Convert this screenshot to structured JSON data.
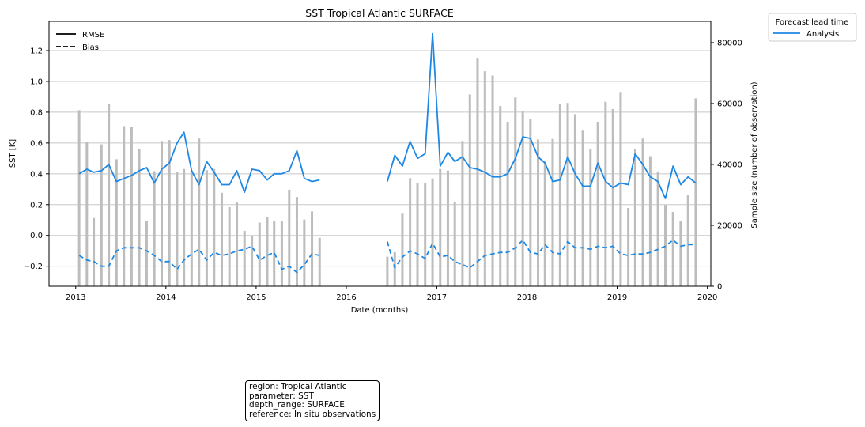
{
  "chart_data": {
    "type": "line",
    "title": "SST Tropical Atlantic SURFACE",
    "xlabel": "Date (months)",
    "ylabel": "SST [K]",
    "y2label": "Sample size (number of observation)",
    "xlim": [
      "2012-09-15",
      "2020-01-15"
    ],
    "ylim": [
      -0.33,
      1.39
    ],
    "y2lim": [
      0,
      87000
    ],
    "x_ticks": [
      "2013",
      "2014",
      "2015",
      "2016",
      "2017",
      "2018",
      "2019",
      "2020"
    ],
    "y_ticks": [
      "−0.2",
      "0.0",
      "0.2",
      "0.4",
      "0.6",
      "0.8",
      "1.0",
      "1.2"
    ],
    "y_tick_values": [
      -0.2,
      0.0,
      0.2,
      0.4,
      0.6,
      0.8,
      1.0,
      1.2
    ],
    "y2_ticks": [
      "0",
      "20000",
      "40000",
      "60000",
      "80000"
    ],
    "y2_tick_values": [
      0,
      20000,
      40000,
      60000,
      80000
    ],
    "grid": "horizontal",
    "style_legend": {
      "placement": "top-left",
      "entries": [
        {
          "label": "RMSE",
          "dash": "solid"
        },
        {
          "label": "Bias",
          "dash": "dashed"
        }
      ]
    },
    "series_legend": {
      "placement": "outside-top-right",
      "title": "Forecast lead time",
      "entries": [
        {
          "label": "Analysis",
          "color": "#1e88e5"
        }
      ]
    },
    "colors": {
      "line": "#1e88e5",
      "bars": "#bdbdbd",
      "grid": "#c8c8c8"
    },
    "rmse_segments": [
      {
        "start": "2013-01",
        "values": [
          0.4,
          0.43,
          0.41,
          0.42,
          0.46,
          0.35,
          0.37,
          0.39,
          0.42,
          0.44,
          0.34,
          0.43,
          0.47,
          0.6,
          0.67,
          0.42,
          0.33,
          0.48,
          0.41,
          0.33,
          0.33,
          0.42,
          0.28,
          0.43,
          0.42,
          0.36,
          0.4,
          0.4,
          0.42,
          0.55,
          0.37,
          0.35,
          0.36
        ]
      },
      {
        "start": "2016-06",
        "values": [
          0.35,
          0.52,
          0.45,
          0.61,
          0.5,
          0.53,
          1.31,
          0.45,
          0.54,
          0.48,
          0.51,
          0.44,
          0.43,
          0.41,
          0.38,
          0.38,
          0.4,
          0.5,
          0.64,
          0.63,
          0.51,
          0.47,
          0.35,
          0.36,
          0.51,
          0.4,
          0.32,
          0.32,
          0.47,
          0.35,
          0.31,
          0.34,
          0.33,
          0.53,
          0.46,
          0.38,
          0.35,
          0.24,
          0.45,
          0.33,
          0.38,
          0.34
        ]
      }
    ],
    "bias_segments": [
      {
        "start": "2013-01",
        "values": [
          -0.13,
          -0.16,
          -0.17,
          -0.2,
          -0.2,
          -0.1,
          -0.08,
          -0.08,
          -0.08,
          -0.1,
          -0.13,
          -0.17,
          -0.17,
          -0.22,
          -0.16,
          -0.12,
          -0.09,
          -0.16,
          -0.11,
          -0.13,
          -0.12,
          -0.1,
          -0.09,
          -0.07,
          -0.16,
          -0.13,
          -0.11,
          -0.22,
          -0.2,
          -0.24,
          -0.19,
          -0.12,
          -0.13
        ]
      },
      {
        "start": "2016-06",
        "values": [
          -0.04,
          -0.21,
          -0.14,
          -0.1,
          -0.12,
          -0.15,
          -0.05,
          -0.14,
          -0.13,
          -0.17,
          -0.19,
          -0.21,
          -0.17,
          -0.13,
          -0.12,
          -0.11,
          -0.11,
          -0.08,
          -0.03,
          -0.11,
          -0.12,
          -0.06,
          -0.11,
          -0.12,
          -0.04,
          -0.08,
          -0.08,
          -0.09,
          -0.07,
          -0.08,
          -0.07,
          -0.12,
          -0.13,
          -0.12,
          -0.12,
          -0.11,
          -0.09,
          -0.07,
          -0.03,
          -0.07,
          -0.06,
          -0.06
        ]
      }
    ],
    "sample_size_segments": [
      {
        "start": "2013-01",
        "values": [
          57800,
          47400,
          22400,
          46600,
          59800,
          41700,
          52600,
          52300,
          45000,
          21500,
          37800,
          47700,
          48000,
          37600,
          38500,
          38000,
          48500,
          38100,
          38500,
          30700,
          26000,
          27700,
          18200,
          16400,
          20900,
          22600,
          21300,
          21400,
          31700,
          29300,
          21900,
          24600,
          15900
        ]
      },
      {
        "start": "2016-06",
        "values": [
          9700,
          11200,
          24100,
          35500,
          34000,
          33800,
          35400,
          38500,
          38000,
          27800,
          47700,
          63000,
          75000,
          70600,
          69200,
          59200,
          54000,
          62000,
          57400,
          55000,
          48200,
          41000,
          48400,
          59800,
          60200,
          56500,
          51100,
          45200,
          54000,
          60600,
          58200,
          63800,
          25700,
          45000,
          48500,
          42700,
          37700,
          26700,
          24400,
          21300,
          30000,
          61700
        ]
      }
    ]
  },
  "info_box": {
    "region": "region: Tropical Atlantic",
    "parameter": "parameter: SST",
    "depth_range": "depth_range: SURFACE",
    "reference": "reference: In situ observations"
  }
}
